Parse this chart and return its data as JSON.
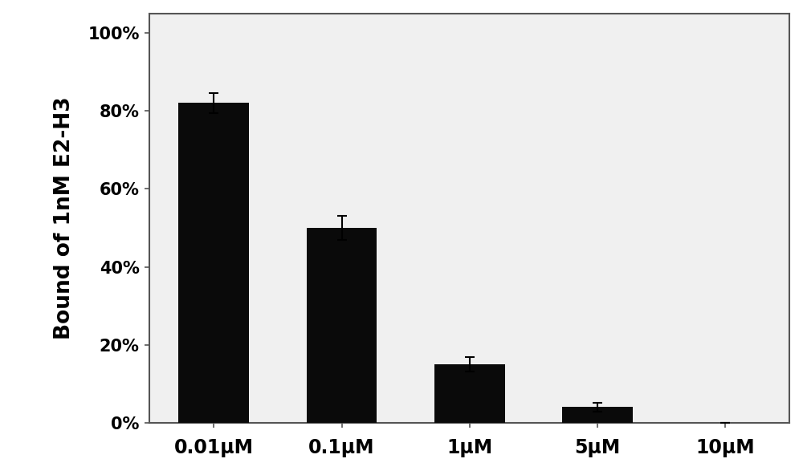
{
  "categories": [
    "0.01μM",
    "0.1μM",
    "1μM",
    "5μM",
    "10μM"
  ],
  "values": [
    0.82,
    0.5,
    0.15,
    0.04,
    0.0
  ],
  "errors": [
    0.025,
    0.03,
    0.018,
    0.012,
    0.0
  ],
  "bar_color": "#0a0a0a",
  "bar_width": 0.55,
  "ylabel": "Bound of 1nM E2-H3",
  "ylim": [
    0,
    1.05
  ],
  "yticks": [
    0.0,
    0.2,
    0.4,
    0.6,
    0.8,
    1.0
  ],
  "ytick_labels": [
    "0%",
    "20%",
    "40%",
    "60%",
    "80%",
    "100%"
  ],
  "background_color": "#ffffff",
  "plot_bg_color": "#f0f0f0",
  "label_fontsize": 17,
  "tick_fontsize": 15,
  "ylabel_fontsize": 19,
  "spine_color": "#555555"
}
